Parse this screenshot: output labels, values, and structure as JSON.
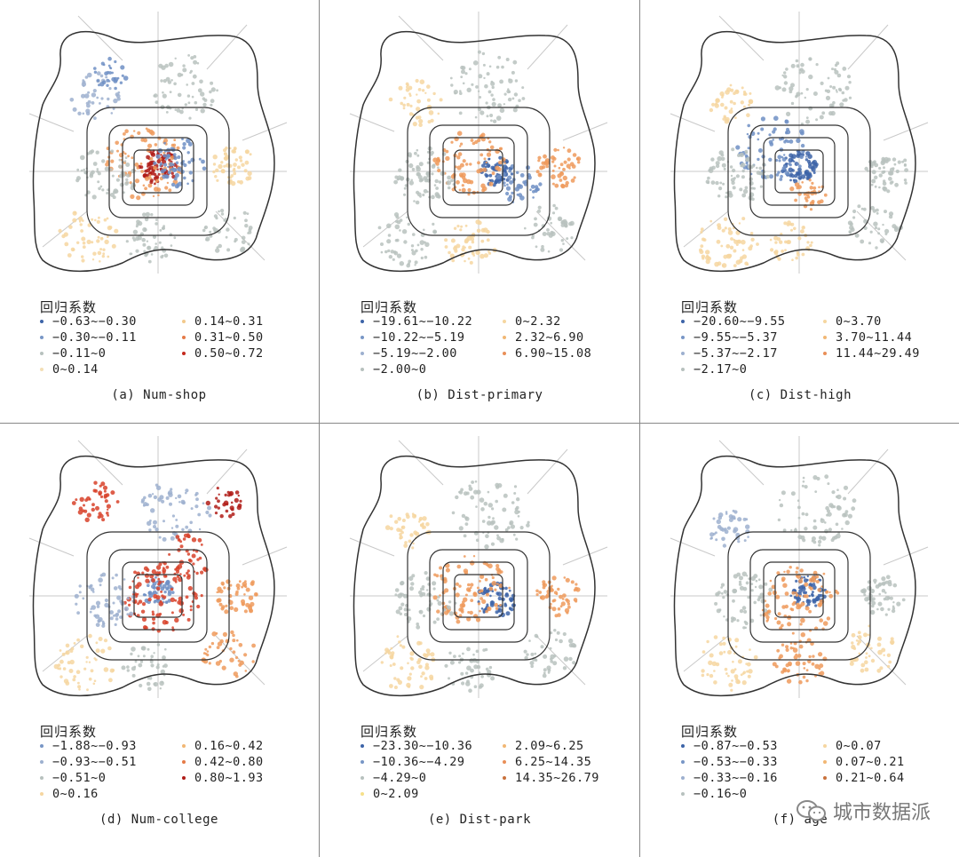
{
  "colors": {
    "blue_dark": "#3d64a8",
    "blue": "#6f8fc4",
    "blue_light": "#9db0cf",
    "gray": "#b9c2be",
    "cream": "#f6d6a0",
    "orange": "#ef9a5c",
    "red": "#d8422a",
    "darkred": "#b01c17"
  },
  "panels": [
    {
      "caption": "(a) Num-shop",
      "legend_title": "回归系数",
      "left": [
        {
          "label": "−0.63~−0.30",
          "color": "#3d64a8"
        },
        {
          "label": "−0.30~−0.11",
          "color": "#7896c6"
        },
        {
          "label": "−0.11~0",
          "color": "#b7c1be"
        },
        {
          "label": "0~0.14",
          "color": "#f3dfb6"
        }
      ],
      "right": [
        {
          "label": "0.14~0.31",
          "color": "#f2c98c"
        },
        {
          "label": "0.31~0.50",
          "color": "#e57a47"
        },
        {
          "label": "0.50~0.72",
          "color": "#c42a1d"
        }
      ]
    },
    {
      "caption": "(b) Dist-primary",
      "legend_title": "回归系数",
      "left": [
        {
          "label": "−19.61~−10.22",
          "color": "#3d64a8"
        },
        {
          "label": "−10.22~−5.19",
          "color": "#7896c6"
        },
        {
          "label": "−5.19~−2.00",
          "color": "#9db0cf"
        },
        {
          "label": "−2.00~0",
          "color": "#b7c1be"
        }
      ],
      "right": [
        {
          "label": "0~2.32",
          "color": "#f6d6a0"
        },
        {
          "label": "2.32~6.90",
          "color": "#f1b774"
        },
        {
          "label": "6.90~15.08",
          "color": "#e98f58"
        }
      ]
    },
    {
      "caption": "(c) Dist-high",
      "legend_title": "回归系数",
      "left": [
        {
          "label": "−20.60~−9.55",
          "color": "#3d64a8"
        },
        {
          "label": "−9.55~−5.37",
          "color": "#7896c6"
        },
        {
          "label": "−5.37~−2.17",
          "color": "#9db0cf"
        },
        {
          "label": "−2.17~0",
          "color": "#b7c1be"
        }
      ],
      "right": [
        {
          "label": "0~3.70",
          "color": "#f6d6a0"
        },
        {
          "label": "3.70~11.44",
          "color": "#f1b774"
        },
        {
          "label": "11.44~29.49",
          "color": "#e98f58"
        }
      ]
    },
    {
      "caption": "(d) Num-college",
      "legend_title": "回归系数",
      "left": [
        {
          "label": "−1.88~−0.93",
          "color": "#7896c6"
        },
        {
          "label": "−0.93~−0.51",
          "color": "#9db0cf"
        },
        {
          "label": "−0.51~0",
          "color": "#b7c1be"
        },
        {
          "label": "0~0.16",
          "color": "#f6d6a0"
        }
      ],
      "right": [
        {
          "label": "0.16~0.42",
          "color": "#f1b774"
        },
        {
          "label": "0.42~0.80",
          "color": "#e57a47"
        },
        {
          "label": "0.80~1.93",
          "color": "#b01c17"
        }
      ]
    },
    {
      "caption": "(e) Dist-park",
      "legend_title": "回归系数",
      "left": [
        {
          "label": "−23.30~−10.36",
          "color": "#3d64a8"
        },
        {
          "label": "−10.36~−4.29",
          "color": "#7896c6"
        },
        {
          "label": "−4.29~0",
          "color": "#b7c1be"
        },
        {
          "label": "0~2.09",
          "color": "#f6e08a"
        }
      ],
      "right": [
        {
          "label": "2.09~6.25",
          "color": "#f1b774"
        },
        {
          "label": "6.25~14.35",
          "color": "#e98f58"
        },
        {
          "label": "14.35~26.79",
          "color": "#c9713c"
        }
      ]
    },
    {
      "caption": "(f) age",
      "legend_title": "回归系数",
      "left": [
        {
          "label": "−0.87~−0.53",
          "color": "#3d64a8"
        },
        {
          "label": "−0.53~−0.33",
          "color": "#7896c6"
        },
        {
          "label": "−0.33~−0.16",
          "color": "#9db0cf"
        },
        {
          "label": "−0.16~0",
          "color": "#b7c1be"
        }
      ],
      "right": [
        {
          "label": "0~0.07",
          "color": "#f6d6a0"
        },
        {
          "label": "0.07~0.21",
          "color": "#f1b774"
        },
        {
          "label": "0.21~0.64",
          "color": "#c9713c"
        }
      ]
    }
  ],
  "watermark": {
    "text": "城市数据派",
    "icon": "wechat-icon"
  }
}
